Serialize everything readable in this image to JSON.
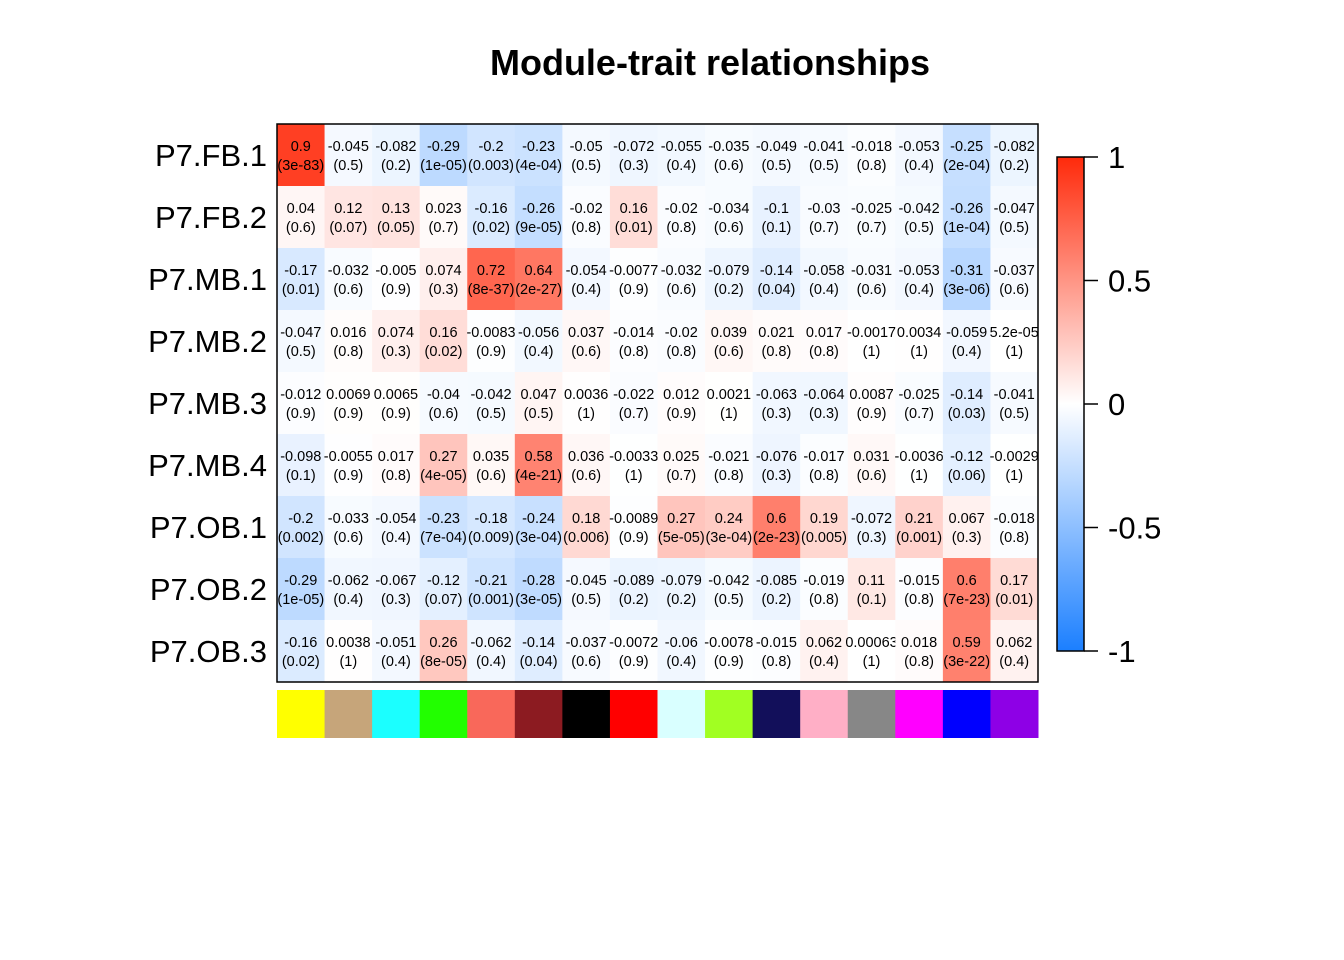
{
  "chart_data": {
    "type": "heatmap",
    "title": "Module-trait relationships",
    "rows": [
      "P7.FB.1",
      "P7.FB.2",
      "P7.MB.1",
      "P7.MB.2",
      "P7.MB.3",
      "P7.MB.4",
      "P7.OB.1",
      "P7.OB.2",
      "P7.OB.3"
    ],
    "module_colors": [
      "#FFFF00",
      "#C6A57A",
      "#1BFFFF",
      "#22FF00",
      "#F9685A",
      "#8C1B21",
      "#000000",
      "#FF0000",
      "#D9FFFF",
      "#A1FF22",
      "#120F5A",
      "#FFAFC6",
      "#878787",
      "#FF00FF",
      "#0000FF",
      "#8E00E6"
    ],
    "module_color_names": [
      "yellow",
      "tan",
      "cyan",
      "green",
      "salmon",
      "darkred",
      "black",
      "red",
      "lightcyan",
      "greenyellow",
      "midnightblue",
      "pink",
      "grey60",
      "magenta",
      "blue",
      "purple"
    ],
    "color_scale": {
      "min": -1,
      "max": 1,
      "low_color": "#1B7FFF",
      "mid_color": "#FFFFFF",
      "high_color": "#FF2A0A",
      "tick_labels": [
        "1",
        "0.5",
        "0",
        "-0.5",
        "-1"
      ]
    },
    "values": [
      [
        0.9,
        -0.045,
        -0.082,
        -0.29,
        -0.2,
        -0.23,
        -0.05,
        -0.072,
        -0.055,
        -0.035,
        -0.049,
        -0.041,
        -0.018,
        -0.053,
        -0.25,
        -0.082
      ],
      [
        0.04,
        0.12,
        0.13,
        0.023,
        -0.16,
        -0.26,
        -0.02,
        0.16,
        -0.02,
        -0.034,
        -0.1,
        -0.03,
        -0.025,
        -0.042,
        -0.26,
        -0.047
      ],
      [
        -0.17,
        -0.032,
        -0.005,
        0.074,
        0.72,
        0.64,
        -0.054,
        -0.0077,
        -0.032,
        -0.079,
        -0.14,
        -0.058,
        -0.031,
        -0.053,
        -0.31,
        -0.037
      ],
      [
        -0.047,
        0.016,
        0.074,
        0.16,
        -0.0083,
        -0.056,
        0.037,
        -0.014,
        -0.02,
        0.039,
        0.021,
        0.017,
        -0.0017,
        0.0034,
        -0.059,
        5.2e-05
      ],
      [
        -0.012,
        0.0069,
        0.0065,
        -0.04,
        -0.042,
        0.047,
        0.0036,
        -0.022,
        0.012,
        0.0021,
        -0.063,
        -0.064,
        0.0087,
        -0.025,
        -0.14,
        -0.041
      ],
      [
        -0.098,
        -0.0055,
        0.017,
        0.27,
        0.035,
        0.58,
        0.036,
        -0.0033,
        0.025,
        -0.021,
        -0.076,
        -0.017,
        0.031,
        -0.0036,
        -0.12,
        -0.0029
      ],
      [
        -0.2,
        -0.033,
        -0.054,
        -0.23,
        -0.18,
        -0.24,
        0.18,
        -0.0089,
        0.27,
        0.24,
        0.6,
        0.19,
        -0.072,
        0.21,
        0.067,
        -0.018
      ],
      [
        -0.29,
        -0.062,
        -0.067,
        -0.12,
        -0.21,
        -0.28,
        -0.045,
        -0.089,
        -0.079,
        -0.042,
        -0.085,
        -0.019,
        0.11,
        -0.015,
        0.6,
        0.17
      ],
      [
        -0.16,
        0.0038,
        -0.051,
        0.26,
        -0.062,
        -0.14,
        -0.037,
        -0.0072,
        -0.06,
        -0.0078,
        -0.015,
        0.062,
        0.00063,
        0.018,
        0.59,
        0.062
      ]
    ],
    "value_labels": [
      [
        "0.9",
        "-0.045",
        "-0.082",
        "-0.29",
        "-0.2",
        "-0.23",
        "-0.05",
        "-0.072",
        "-0.055",
        "-0.035",
        "-0.049",
        "-0.041",
        "-0.018",
        "-0.053",
        "-0.25",
        "-0.082"
      ],
      [
        "0.04",
        "0.12",
        "0.13",
        "0.023",
        "-0.16",
        "-0.26",
        "-0.02",
        "0.16",
        "-0.02",
        "-0.034",
        "-0.1",
        "-0.03",
        "-0.025",
        "-0.042",
        "-0.26",
        "-0.047"
      ],
      [
        "-0.17",
        "-0.032",
        "-0.005",
        "0.074",
        "0.72",
        "0.64",
        "-0.054",
        "-0.0077",
        "-0.032",
        "-0.079",
        "-0.14",
        "-0.058",
        "-0.031",
        "-0.053",
        "-0.31",
        "-0.037"
      ],
      [
        "-0.047",
        "0.016",
        "0.074",
        "0.16",
        "-0.0083",
        "-0.056",
        "0.037",
        "-0.014",
        "-0.02",
        "0.039",
        "0.021",
        "0.017",
        "-0.0017",
        "0.0034",
        "-0.059",
        "5.2e-05"
      ],
      [
        "-0.012",
        "0.0069",
        "0.0065",
        "-0.04",
        "-0.042",
        "0.047",
        "0.0036",
        "-0.022",
        "0.012",
        "0.0021",
        "-0.063",
        "-0.064",
        "0.0087",
        "-0.025",
        "-0.14",
        "-0.041"
      ],
      [
        "-0.098",
        "-0.0055",
        "0.017",
        "0.27",
        "0.035",
        "0.58",
        "0.036",
        "-0.0033",
        "0.025",
        "-0.021",
        "-0.076",
        "-0.017",
        "0.031",
        "-0.0036",
        "-0.12",
        "-0.0029"
      ],
      [
        "-0.2",
        "-0.033",
        "-0.054",
        "-0.23",
        "-0.18",
        "-0.24",
        "0.18",
        "-0.0089",
        "0.27",
        "0.24",
        "0.6",
        "0.19",
        "-0.072",
        "0.21",
        "0.067",
        "-0.018"
      ],
      [
        "-0.29",
        "-0.062",
        "-0.067",
        "-0.12",
        "-0.21",
        "-0.28",
        "-0.045",
        "-0.089",
        "-0.079",
        "-0.042",
        "-0.085",
        "-0.019",
        "0.11",
        "-0.015",
        "0.6",
        "0.17"
      ],
      [
        "-0.16",
        "0.0038",
        "-0.051",
        "0.26",
        "-0.062",
        "-0.14",
        "-0.037",
        "-0.0072",
        "-0.06",
        "-0.0078",
        "-0.015",
        "0.062",
        "0.00063",
        "0.018",
        "0.59",
        "0.062"
      ]
    ],
    "p_values": [
      [
        "(3e-83)",
        "(0.5)",
        "(0.2)",
        "(1e-05)",
        "(0.003)",
        "(4e-04)",
        "(0.5)",
        "(0.3)",
        "(0.4)",
        "(0.6)",
        "(0.5)",
        "(0.5)",
        "(0.8)",
        "(0.4)",
        "(2e-04)",
        "(0.2)"
      ],
      [
        "(0.6)",
        "(0.07)",
        "(0.05)",
        "(0.7)",
        "(0.02)",
        "(9e-05)",
        "(0.8)",
        "(0.01)",
        "(0.8)",
        "(0.6)",
        "(0.1)",
        "(0.7)",
        "(0.7)",
        "(0.5)",
        "(1e-04)",
        "(0.5)"
      ],
      [
        "(0.01)",
        "(0.6)",
        "(0.9)",
        "(0.3)",
        "(8e-37)",
        "(2e-27)",
        "(0.4)",
        "(0.9)",
        "(0.6)",
        "(0.2)",
        "(0.04)",
        "(0.4)",
        "(0.6)",
        "(0.4)",
        "(3e-06)",
        "(0.6)"
      ],
      [
        "(0.5)",
        "(0.8)",
        "(0.3)",
        "(0.02)",
        "(0.9)",
        "(0.4)",
        "(0.6)",
        "(0.8)",
        "(0.8)",
        "(0.6)",
        "(0.8)",
        "(0.8)",
        "(1)",
        "(1)",
        "(0.4)",
        "(1)"
      ],
      [
        "(0.9)",
        "(0.9)",
        "(0.9)",
        "(0.6)",
        "(0.5)",
        "(0.5)",
        "(1)",
        "(0.7)",
        "(0.9)",
        "(1)",
        "(0.3)",
        "(0.3)",
        "(0.9)",
        "(0.7)",
        "(0.03)",
        "(0.5)"
      ],
      [
        "(0.1)",
        "(0.9)",
        "(0.8)",
        "(4e-05)",
        "(0.6)",
        "(4e-21)",
        "(0.6)",
        "(1)",
        "(0.7)",
        "(0.8)",
        "(0.3)",
        "(0.8)",
        "(0.6)",
        "(1)",
        "(0.06)",
        "(1)"
      ],
      [
        "(0.002)",
        "(0.6)",
        "(0.4)",
        "(7e-04)",
        "(0.009)",
        "(3e-04)",
        "(0.006)",
        "(0.9)",
        "(5e-05)",
        "(3e-04)",
        "(2e-23)",
        "(0.005)",
        "(0.3)",
        "(0.001)",
        "(0.3)",
        "(0.8)"
      ],
      [
        "(1e-05)",
        "(0.4)",
        "(0.3)",
        "(0.07)",
        "(0.001)",
        "(3e-05)",
        "(0.5)",
        "(0.2)",
        "(0.2)",
        "(0.5)",
        "(0.2)",
        "(0.8)",
        "(0.1)",
        "(0.8)",
        "(7e-23)",
        "(0.01)"
      ],
      [
        "(0.02)",
        "(1)",
        "(0.4)",
        "(8e-05)",
        "(0.4)",
        "(0.04)",
        "(0.6)",
        "(0.9)",
        "(0.4)",
        "(0.9)",
        "(0.8)",
        "(0.4)",
        "(1)",
        "(0.8)",
        "(3e-22)",
        "(0.4)"
      ]
    ]
  }
}
